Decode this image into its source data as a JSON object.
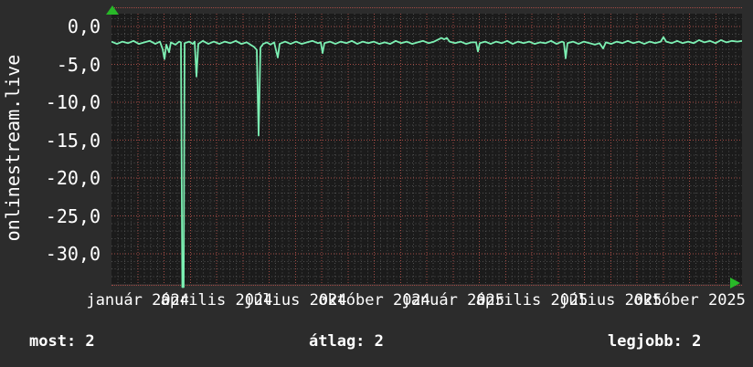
{
  "panel": {
    "bg": "#2c2c2c",
    "plot_bg": "#1b1b1b",
    "text_color": "#ffffff"
  },
  "y_axis": {
    "unit_label": "onlinestream.live",
    "ticks": [
      {
        "label": "0,0",
        "value": 0
      },
      {
        "label": "-5,0",
        "value": -5
      },
      {
        "label": "-10,0",
        "value": -10
      },
      {
        "label": "-15,0",
        "value": -15
      },
      {
        "label": "-20,0",
        "value": -20
      },
      {
        "label": "-25,0",
        "value": -25
      },
      {
        "label": "-30,0",
        "value": -30
      }
    ]
  },
  "x_axis": {
    "labels": [
      {
        "label": "január 2024",
        "m": 1
      },
      {
        "label": "április 2024",
        "m": 4
      },
      {
        "label": "július 2024",
        "m": 7
      },
      {
        "label": "október 2024",
        "m": 10
      },
      {
        "label": "január 2025",
        "m": 13
      },
      {
        "label": "április 2025",
        "m": 16
      },
      {
        "label": "július 2025",
        "m": 19
      },
      {
        "label": "október 2025",
        "m": 22
      }
    ]
  },
  "stats": {
    "most": "most: 2",
    "atlag": "átlag: 2",
    "legjobb": "legjobb: 2"
  },
  "chart_data": {
    "type": "line",
    "title": "",
    "ylabel": "onlinestream.live",
    "y_ticks": [
      "0,0",
      "-5,0",
      "-10,0",
      "-15,0",
      "-20,0",
      "-25,0",
      "-30,0"
    ],
    "x_tick_labels": [
      "január 2024",
      "április 2024",
      "július 2024",
      "október 2024",
      "január 2025",
      "április 2025",
      "július 2025",
      "október 2025"
    ],
    "x_months_total": 24,
    "ylim": [
      -34,
      2
    ],
    "y_major_step": 5,
    "y_minor_step": 1,
    "grid": {
      "on": true,
      "minor_color": "#4e4e4e",
      "major_color": "#a34b45"
    },
    "line_color": "#7cf0b3",
    "arrow_color": "#28b828",
    "baseline_value": -2.1,
    "legend_stats": {
      "most": 2,
      "atlag": 2,
      "legjobb": 2
    },
    "series": [
      {
        "name": "onlinestream.live",
        "color": "#7cf0b3",
        "points": [
          [
            0,
            -2.0
          ],
          [
            6,
            -2.3
          ],
          [
            12,
            -2.0
          ],
          [
            18,
            -2.2
          ],
          [
            24,
            -1.9
          ],
          [
            30,
            -2.3
          ],
          [
            36,
            -2.1
          ],
          [
            42,
            -1.9
          ],
          [
            48,
            -2.3
          ],
          [
            53,
            -2.0
          ],
          [
            56,
            -3.0
          ],
          [
            58,
            -4.3
          ],
          [
            60,
            -2.4
          ],
          [
            63,
            -3.4
          ],
          [
            65,
            -2.1
          ],
          [
            70,
            -2.4
          ],
          [
            74,
            -2.0
          ],
          [
            76,
            -2.1
          ],
          [
            77.5,
            -34.4
          ],
          [
            79,
            -34.4
          ],
          [
            80,
            -2.2
          ],
          [
            85,
            -2.0
          ],
          [
            89,
            -2.3
          ],
          [
            91,
            -2.0
          ],
          [
            93,
            -6.6
          ],
          [
            95,
            -2.3
          ],
          [
            100,
            -1.9
          ],
          [
            106,
            -2.3
          ],
          [
            112,
            -2.0
          ],
          [
            118,
            -2.3
          ],
          [
            124,
            -2.0
          ],
          [
            130,
            -2.2
          ],
          [
            136,
            -1.9
          ],
          [
            142,
            -2.3
          ],
          [
            148,
            -2.1
          ],
          [
            152,
            -2.4
          ],
          [
            156,
            -2.7
          ],
          [
            159,
            -3.1
          ],
          [
            161,
            -14.4
          ],
          [
            163,
            -2.8
          ],
          [
            166,
            -2.3
          ],
          [
            170,
            -2.1
          ],
          [
            174,
            -2.4
          ],
          [
            178,
            -2.1
          ],
          [
            182,
            -4.1
          ],
          [
            184,
            -2.3
          ],
          [
            190,
            -2.0
          ],
          [
            196,
            -2.3
          ],
          [
            202,
            -2.0
          ],
          [
            208,
            -2.3
          ],
          [
            214,
            -2.1
          ],
          [
            220,
            -1.9
          ],
          [
            226,
            -2.2
          ],
          [
            229,
            -2.1
          ],
          [
            231,
            -3.5
          ],
          [
            233,
            -2.2
          ],
          [
            239,
            -2.0
          ],
          [
            245,
            -2.3
          ],
          [
            251,
            -2.0
          ],
          [
            257,
            -2.2
          ],
          [
            263,
            -1.9
          ],
          [
            269,
            -2.3
          ],
          [
            275,
            -2.0
          ],
          [
            281,
            -2.2
          ],
          [
            287,
            -2.0
          ],
          [
            293,
            -2.3
          ],
          [
            299,
            -2.1
          ],
          [
            305,
            -2.3
          ],
          [
            311,
            -1.9
          ],
          [
            317,
            -2.2
          ],
          [
            323,
            -2.0
          ],
          [
            329,
            -2.3
          ],
          [
            335,
            -2.1
          ],
          [
            341,
            -1.9
          ],
          [
            347,
            -2.2
          ],
          [
            353,
            -2.0
          ],
          [
            358,
            -1.7
          ],
          [
            361,
            -1.5
          ],
          [
            364,
            -1.7
          ],
          [
            367,
            -1.5
          ],
          [
            370,
            -2.0
          ],
          [
            376,
            -2.2
          ],
          [
            382,
            -2.0
          ],
          [
            388,
            -2.3
          ],
          [
            394,
            -2.1
          ],
          [
            399,
            -2.1
          ],
          [
            401,
            -3.3
          ],
          [
            403,
            -2.2
          ],
          [
            409,
            -2.0
          ],
          [
            415,
            -2.3
          ],
          [
            421,
            -2.0
          ],
          [
            427,
            -2.2
          ],
          [
            433,
            -1.9
          ],
          [
            439,
            -2.3
          ],
          [
            445,
            -2.0
          ],
          [
            451,
            -2.2
          ],
          [
            457,
            -2.0
          ],
          [
            463,
            -2.3
          ],
          [
            469,
            -2.1
          ],
          [
            475,
            -2.2
          ],
          [
            481,
            -1.9
          ],
          [
            487,
            -2.3
          ],
          [
            493,
            -2.0
          ],
          [
            495,
            -2.1
          ],
          [
            497,
            -4.2
          ],
          [
            499,
            -2.2
          ],
          [
            505,
            -2.0
          ],
          [
            511,
            -2.3
          ],
          [
            517,
            -2.0
          ],
          [
            523,
            -2.2
          ],
          [
            529,
            -2.4
          ],
          [
            534,
            -2.2
          ],
          [
            538,
            -2.9
          ],
          [
            541,
            -2.1
          ],
          [
            547,
            -2.3
          ],
          [
            553,
            -2.0
          ],
          [
            559,
            -2.2
          ],
          [
            565,
            -1.9
          ],
          [
            571,
            -2.2
          ],
          [
            577,
            -2.0
          ],
          [
            583,
            -2.3
          ],
          [
            589,
            -2.0
          ],
          [
            595,
            -2.2
          ],
          [
            601,
            -2.0
          ],
          [
            604,
            -1.4
          ],
          [
            607,
            -2.0
          ],
          [
            613,
            -2.2
          ],
          [
            619,
            -1.9
          ],
          [
            625,
            -2.2
          ],
          [
            631,
            -2.0
          ],
          [
            637,
            -2.2
          ],
          [
            643,
            -1.8
          ],
          [
            649,
            -2.1
          ],
          [
            655,
            -1.9
          ],
          [
            661,
            -2.2
          ],
          [
            667,
            -1.8
          ],
          [
            673,
            -2.1
          ],
          [
            679,
            -1.9
          ],
          [
            685,
            -2.0
          ],
          [
            690,
            -1.9
          ]
        ]
      }
    ]
  }
}
